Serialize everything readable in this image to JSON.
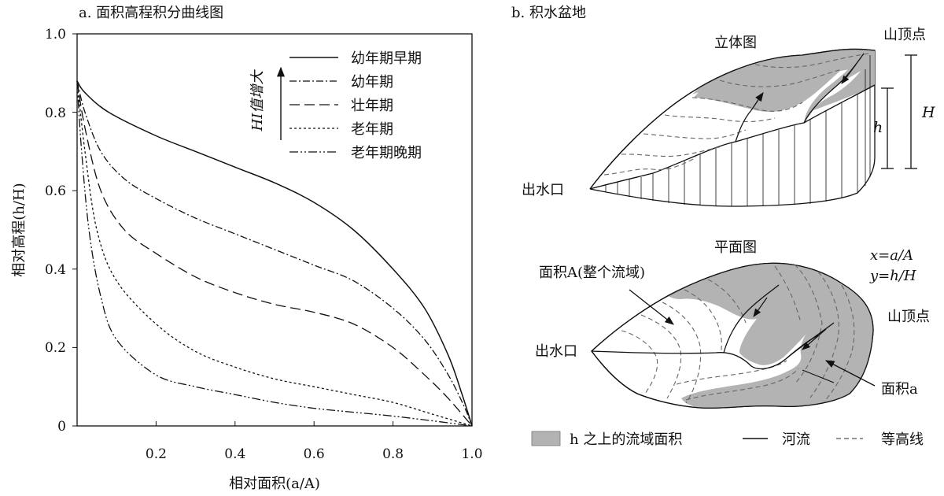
{
  "chart_data": [
    {
      "type": "line",
      "title": "a. 面积高程积分曲线图",
      "xlabel": "相对面积(a/A)",
      "ylabel": "相对高程(h/H)",
      "xlim": [
        0,
        1
      ],
      "ylim": [
        0,
        1
      ],
      "x_ticks": [
        "0.2",
        "0.4",
        "0.6",
        "0.8",
        "1.0"
      ],
      "y_ticks": [
        "0",
        "0.2",
        "0.4",
        "0.6",
        "0.8",
        "1.0"
      ],
      "annotation": "HI值增大",
      "legend_position": "top-right",
      "series": [
        {
          "name": "幼年期早期",
          "style": "solid",
          "points": [
            [
              0,
              0.88
            ],
            [
              0.02,
              0.85
            ],
            [
              0.08,
              0.8
            ],
            [
              0.2,
              0.74
            ],
            [
              0.3,
              0.7
            ],
            [
              0.4,
              0.66
            ],
            [
              0.5,
              0.62
            ],
            [
              0.6,
              0.57
            ],
            [
              0.7,
              0.5
            ],
            [
              0.8,
              0.4
            ],
            [
              0.88,
              0.3
            ],
            [
              0.94,
              0.18
            ],
            [
              0.975,
              0.08
            ],
            [
              1,
              0
            ]
          ]
        },
        {
          "name": "幼年期",
          "style": "dash-dot",
          "points": [
            [
              0,
              0.88
            ],
            [
              0.02,
              0.8
            ],
            [
              0.06,
              0.7
            ],
            [
              0.12,
              0.63
            ],
            [
              0.2,
              0.58
            ],
            [
              0.3,
              0.53
            ],
            [
              0.4,
              0.49
            ],
            [
              0.5,
              0.45
            ],
            [
              0.6,
              0.41
            ],
            [
              0.7,
              0.37
            ],
            [
              0.8,
              0.3
            ],
            [
              0.88,
              0.22
            ],
            [
              0.94,
              0.13
            ],
            [
              0.98,
              0.05
            ],
            [
              1,
              0
            ]
          ]
        },
        {
          "name": "壮年期",
          "style": "dashed",
          "points": [
            [
              0,
              0.88
            ],
            [
              0.02,
              0.76
            ],
            [
              0.06,
              0.6
            ],
            [
              0.12,
              0.5
            ],
            [
              0.2,
              0.44
            ],
            [
              0.3,
              0.38
            ],
            [
              0.4,
              0.34
            ],
            [
              0.5,
              0.31
            ],
            [
              0.6,
              0.29
            ],
            [
              0.7,
              0.26
            ],
            [
              0.8,
              0.2
            ],
            [
              0.88,
              0.13
            ],
            [
              0.94,
              0.07
            ],
            [
              1,
              0
            ]
          ]
        },
        {
          "name": "老年期",
          "style": "dotted",
          "points": [
            [
              0,
              0.88
            ],
            [
              0.02,
              0.7
            ],
            [
              0.05,
              0.5
            ],
            [
              0.1,
              0.37
            ],
            [
              0.2,
              0.26
            ],
            [
              0.3,
              0.19
            ],
            [
              0.4,
              0.15
            ],
            [
              0.5,
              0.12
            ],
            [
              0.6,
              0.1
            ],
            [
              0.7,
              0.08
            ],
            [
              0.8,
              0.06
            ],
            [
              0.9,
              0.03
            ],
            [
              1,
              0
            ]
          ]
        },
        {
          "name": "老年期晚期",
          "style": "dash-dot-dot",
          "points": [
            [
              0,
              0.88
            ],
            [
              0.01,
              0.72
            ],
            [
              0.03,
              0.5
            ],
            [
              0.06,
              0.33
            ],
            [
              0.1,
              0.22
            ],
            [
              0.2,
              0.13
            ],
            [
              0.3,
              0.1
            ],
            [
              0.4,
              0.08
            ],
            [
              0.5,
              0.06
            ],
            [
              0.6,
              0.045
            ],
            [
              0.7,
              0.035
            ],
            [
              0.8,
              0.025
            ],
            [
              0.9,
              0.013
            ],
            [
              1,
              0
            ]
          ]
        }
      ]
    }
  ],
  "diagram": {
    "title": "b. 积水盆地",
    "view_3d": "立体图",
    "view_plan": "平面图",
    "summit": "山顶点",
    "outlet": "出水口",
    "H": "H",
    "h": "h",
    "total_area": "面积A(整个流域)",
    "partial_area": "面积a",
    "formula_x": "x=a/A",
    "formula_y": "y=h/H",
    "legend": [
      {
        "label": "h 之上的流域面积",
        "symbol": "gray-box"
      },
      {
        "label": "河流",
        "symbol": "solid-line"
      },
      {
        "label": "等高线",
        "symbol": "dashed-line"
      }
    ],
    "fill_color": "#b3b3b3"
  }
}
